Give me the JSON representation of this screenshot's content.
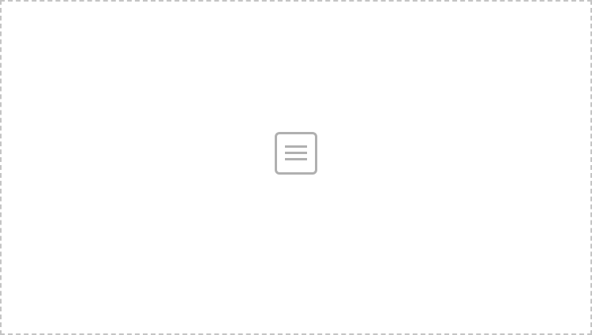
{
  "page": {
    "title": ""
  }
}
